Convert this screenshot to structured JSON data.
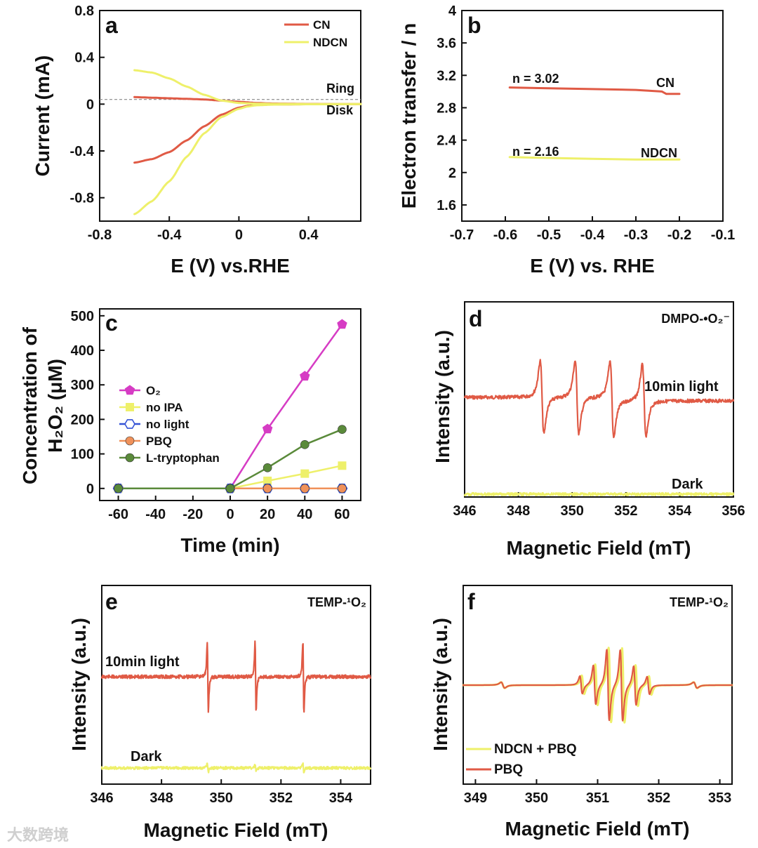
{
  "watermark": "大数跨境",
  "colors": {
    "cn": "#e05a45",
    "ndcn": "#eef06a",
    "o2": "#d63cc4",
    "no_ipa": "#eef06a",
    "no_light": "#3452d6",
    "pbq": "#f0915a",
    "l_tryptophan": "#5a8a3a",
    "axis": "#111111"
  },
  "chart_data": [
    {
      "panel": "a",
      "type": "line",
      "xlabel": "E (V) vs.RHE",
      "ylabel": "Current (mA)",
      "xlim": [
        -0.8,
        0.7
      ],
      "ylim": [
        -1.0,
        0.8
      ],
      "xticks": [
        -0.8,
        -0.4,
        0.0,
        0.4
      ],
      "yticks": [
        -0.8,
        -0.4,
        0.0,
        0.4,
        0.8
      ],
      "annotations": [
        "Ring",
        "Disk"
      ],
      "legend": "top-right",
      "series": [
        {
          "name": "CN",
          "color_key": "cn",
          "x": [
            -0.6,
            -0.5,
            -0.4,
            -0.3,
            -0.2,
            -0.1,
            0.0,
            0.1,
            0.2,
            0.4,
            0.7
          ],
          "y": [
            0.06,
            0.055,
            0.05,
            0.045,
            0.04,
            0.03,
            0.02,
            0.01,
            0.005,
            0.002,
            0.0
          ]
        },
        {
          "name": "CN",
          "color_key": "cn",
          "x": [
            -0.6,
            -0.5,
            -0.4,
            -0.3,
            -0.2,
            -0.1,
            0.0,
            0.05,
            0.1,
            0.2,
            0.4,
            0.7
          ],
          "y": [
            -0.5,
            -0.47,
            -0.41,
            -0.31,
            -0.19,
            -0.09,
            -0.03,
            -0.015,
            -0.007,
            -0.003,
            -0.001,
            0.0
          ]
        },
        {
          "name": "NDCN",
          "color_key": "ndcn",
          "x": [
            -0.6,
            -0.5,
            -0.4,
            -0.3,
            -0.2,
            -0.1,
            0.0,
            0.1,
            0.2,
            0.4,
            0.7
          ],
          "y": [
            0.29,
            0.27,
            0.22,
            0.15,
            0.08,
            0.03,
            0.01,
            0.004,
            0.002,
            0.001,
            0.0
          ]
        },
        {
          "name": "NDCN",
          "color_key": "ndcn",
          "x": [
            -0.6,
            -0.5,
            -0.4,
            -0.3,
            -0.2,
            -0.1,
            0.0,
            0.05,
            0.1,
            0.2,
            0.4,
            0.7
          ],
          "y": [
            -0.94,
            -0.83,
            -0.66,
            -0.45,
            -0.25,
            -0.11,
            -0.04,
            -0.02,
            -0.01,
            -0.004,
            -0.001,
            0.0
          ]
        }
      ]
    },
    {
      "panel": "b",
      "type": "line",
      "xlabel": "E (V) vs. RHE",
      "ylabel": "Electron transfer / n",
      "xlim": [
        -0.7,
        -0.1
      ],
      "ylim": [
        1.4,
        4.0
      ],
      "xticks": [
        -0.7,
        -0.6,
        -0.5,
        -0.4,
        -0.3,
        -0.2,
        -0.1
      ],
      "yticks": [
        1.6,
        2.0,
        2.4,
        2.8,
        3.2,
        3.6,
        4.0
      ],
      "annotations": [
        "n = 3.02",
        "n = 2.16",
        "CN",
        "NDCN"
      ],
      "series": [
        {
          "name": "CN",
          "color_key": "cn",
          "x": [
            -0.59,
            -0.5,
            -0.4,
            -0.3,
            -0.24,
            -0.23,
            -0.2
          ],
          "y": [
            3.05,
            3.04,
            3.03,
            3.02,
            3.0,
            2.97,
            2.97
          ]
        },
        {
          "name": "NDCN",
          "color_key": "ndcn",
          "x": [
            -0.59,
            -0.5,
            -0.4,
            -0.3,
            -0.2
          ],
          "y": [
            2.19,
            2.18,
            2.17,
            2.16,
            2.16
          ]
        }
      ]
    },
    {
      "panel": "c",
      "type": "line",
      "xlabel": "Time (min)",
      "ylabel_line1": "Concentration of",
      "ylabel_line2": "H₂O₂ (μM)",
      "xlim": [
        -70,
        70
      ],
      "ylim": [
        -35,
        520
      ],
      "xticks": [
        -60,
        -40,
        -20,
        0,
        20,
        40,
        60
      ],
      "yticks": [
        0,
        100,
        200,
        300,
        400,
        500
      ],
      "legend": "center-left",
      "series": [
        {
          "name": "O₂",
          "color_key": "o2",
          "marker": "pentagon",
          "x": [
            -60,
            0,
            20,
            40,
            60
          ],
          "y": [
            0,
            0,
            172,
            325,
            475
          ]
        },
        {
          "name": "no IPA",
          "color_key": "no_ipa",
          "marker": "square",
          "x": [
            -60,
            0,
            20,
            40,
            60
          ],
          "y": [
            0,
            0,
            22,
            43,
            66
          ]
        },
        {
          "name": "no light",
          "color_key": "no_light",
          "marker": "hexagon",
          "x": [
            -60,
            0,
            20,
            40,
            60
          ],
          "y": [
            0,
            0,
            0,
            0,
            0
          ]
        },
        {
          "name": "PBQ",
          "color_key": "pbq",
          "marker": "circle",
          "x": [
            -60,
            0,
            20,
            40,
            60
          ],
          "y": [
            0,
            0,
            0,
            0,
            0
          ]
        },
        {
          "name": "L-tryptophan",
          "color_key": "l_tryptophan",
          "marker": "circle",
          "x": [
            -60,
            0,
            20,
            40,
            60
          ],
          "y": [
            0,
            0,
            60,
            127,
            171
          ]
        }
      ]
    },
    {
      "panel": "d",
      "type": "line",
      "xlabel": "Magnetic Field (mT)",
      "ylabel": "Intensity (a.u.)",
      "xlim": [
        346,
        356
      ],
      "xticks": [
        346,
        348,
        350,
        352,
        354,
        356
      ],
      "title": "DMPO-•O₂⁻",
      "annotations": [
        "10min light",
        "Dark"
      ],
      "peaks": [
        348.8,
        350.1,
        351.4,
        352.6
      ],
      "series": [
        {
          "name": "10min light",
          "color_key": "cn"
        },
        {
          "name": "Dark",
          "color_key": "ndcn"
        }
      ]
    },
    {
      "panel": "e",
      "type": "line",
      "xlabel": "Magnetic Field (mT)",
      "ylabel": "Intensity (a.u.)",
      "xlim": [
        346,
        355
      ],
      "xticks": [
        346,
        348,
        350,
        352,
        354
      ],
      "title": "TEMP-¹O₂",
      "annotations": [
        "10min light",
        "Dark"
      ],
      "peaks": [
        349.55,
        351.15,
        352.75
      ],
      "series": [
        {
          "name": "10min light",
          "color_key": "cn"
        },
        {
          "name": "Dark",
          "color_key": "ndcn"
        }
      ]
    },
    {
      "panel": "f",
      "type": "line",
      "xlabel": "Magnetic Field (mT)",
      "ylabel": "Intensity (a.u.)",
      "xlim": [
        348.8,
        353.2
      ],
      "xticks": [
        349,
        350,
        351,
        352,
        353
      ],
      "title": "TEMP-¹O₂",
      "legend": "bottom-left",
      "center": 351.28,
      "series": [
        {
          "name": "NDCN + PBQ",
          "color_key": "ndcn"
        },
        {
          "name": "PBQ",
          "color_key": "cn"
        }
      ]
    }
  ]
}
